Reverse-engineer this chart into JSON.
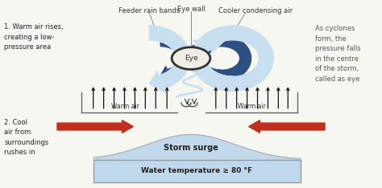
{
  "bg_color": "#f7f7f2",
  "text_label1": "1. Warm air rises,\ncreating a low-\npressure area",
  "text_label2": "2. Cool\nair from\nsurroundings\nrushes in",
  "text_right": "As cyclones\nform, the\npressure falls\nin the centre\nof the storm,\ncalled as eye",
  "label_feeder": "Feeder rain bands",
  "label_eyewall": "Eye wall",
  "label_cooler": "Cooler condensing air",
  "label_eye": "Eye",
  "label_warm1": "Warm air",
  "label_warm2": "Warm air",
  "label_storm": "Storm surge",
  "label_water": "Water temperature ≥ 80 °F",
  "dark_blue": "#2d4f82",
  "light_blue": "#a8c8e0",
  "lighter_blue": "#c8dff0",
  "water_blue": "#c0d8ec",
  "red_arrow": "#c03020",
  "storm_surge_color": "#c0d8ec"
}
